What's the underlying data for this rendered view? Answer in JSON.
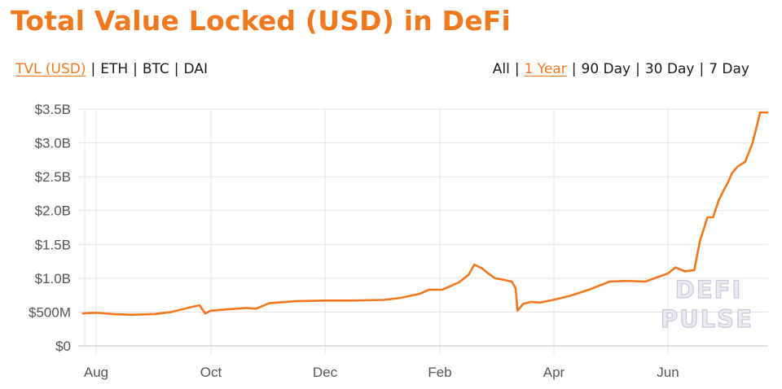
{
  "header": {
    "title": "Total Value Locked (USD) in DeFi"
  },
  "metric_tabs": [
    {
      "label": "TVL (USD)",
      "active": true
    },
    {
      "label": "ETH",
      "active": false
    },
    {
      "label": "BTC",
      "active": false
    },
    {
      "label": "DAI",
      "active": false
    }
  ],
  "range_tabs": [
    {
      "label": "All",
      "active": false
    },
    {
      "label": "1 Year",
      "active": true
    },
    {
      "label": "90 Day",
      "active": false
    },
    {
      "label": "30 Day",
      "active": false
    },
    {
      "label": "7 Day",
      "active": false
    }
  ],
  "separator": "|",
  "watermark": {
    "line1": "DEFI",
    "line2": "PULSE"
  },
  "colors": {
    "accent": "#f0781e",
    "grid": "#e3e3e3",
    "text": "#1a1a1a",
    "tick": "#555555"
  },
  "chart_data": {
    "type": "line",
    "title": "Total Value Locked (USD) in DeFi",
    "xlabel": "",
    "ylabel": "TVL (USD)",
    "ylim": [
      0,
      3.5
    ],
    "y_unit": "billion USD",
    "yticks": [
      "$0",
      "$500M",
      "$1.0B",
      "$1.5B",
      "$2.0B",
      "$2.5B",
      "$3.0B",
      "$3.5B"
    ],
    "ytick_values": [
      0,
      0.5,
      1.0,
      1.5,
      2.0,
      2.5,
      3.0,
      3.5
    ],
    "xticks": [
      "Aug",
      "Oct",
      "Dec",
      "Feb",
      "Apr",
      "Jun"
    ],
    "grid": true,
    "legend": "none",
    "series": [
      {
        "name": "TVL (USD)",
        "color": "#f0781e",
        "x": [
          "Jul 25",
          "Aug 1",
          "Aug 10",
          "Aug 20",
          "Sep 1",
          "Sep 10",
          "Sep 20",
          "Sep 25",
          "Sep 28",
          "Oct 1",
          "Oct 10",
          "Oct 20",
          "Oct 25",
          "Nov 1",
          "Nov 15",
          "Dec 1",
          "Dec 15",
          "Jan 1",
          "Jan 10",
          "Jan 20",
          "Jan 25",
          "Feb 1",
          "Feb 10",
          "Feb 15",
          "Feb 18",
          "Feb 22",
          "Feb 25",
          "Mar 1",
          "Mar 5",
          "Mar 10",
          "Mar 12",
          "Mar 13",
          "Mar 16",
          "Mar 20",
          "Mar 25",
          "Apr 1",
          "Apr 10",
          "Apr 20",
          "May 1",
          "May 10",
          "May 20",
          "Jun 1",
          "Jun 5",
          "Jun 10",
          "Jun 15",
          "Jun 18",
          "Jun 22",
          "Jun 25",
          "Jun 28",
          "Jul 1",
          "Jul 3",
          "Jul 5",
          "Jul 8",
          "Jul 12",
          "Jul 16",
          "Jul 20",
          "Jul 23",
          "Jul 25"
        ],
        "values": [
          0.48,
          0.49,
          0.47,
          0.46,
          0.47,
          0.5,
          0.57,
          0.6,
          0.48,
          0.52,
          0.54,
          0.56,
          0.55,
          0.63,
          0.66,
          0.67,
          0.67,
          0.68,
          0.71,
          0.77,
          0.83,
          0.83,
          0.94,
          1.05,
          1.2,
          1.15,
          1.08,
          1.0,
          0.98,
          0.95,
          0.85,
          0.52,
          0.62,
          0.65,
          0.64,
          0.68,
          0.74,
          0.83,
          0.95,
          0.96,
          0.95,
          1.07,
          1.16,
          1.1,
          1.12,
          1.55,
          1.9,
          1.9,
          2.15,
          2.32,
          2.42,
          2.55,
          2.65,
          2.72,
          3.0,
          3.45,
          3.45,
          3.45
        ]
      }
    ]
  }
}
